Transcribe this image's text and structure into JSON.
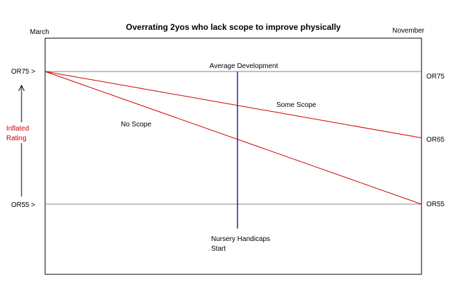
{
  "title": "Overrating 2yos who lack scope to improve physically",
  "start_label": "March",
  "end_label": "November",
  "left_axis": {
    "top_label": "OR75 >",
    "bottom_label": "OR55 >",
    "arrow_caption_line1": "Inflated",
    "arrow_caption_line2": "Rating"
  },
  "right_axis": {
    "top_label": "OR75",
    "middle_label": "OR65",
    "bottom_label": "OR55"
  },
  "milestone": {
    "top_label": "Average Development",
    "bottom_label_line1": "Nursery Handicaps",
    "bottom_label_line2": "Start"
  },
  "lines": [
    {
      "name": "Some Scope",
      "start": 75,
      "end": 65
    },
    {
      "name": "No Scope",
      "start": 75,
      "end": 55
    }
  ],
  "colors": {
    "frame": "#000000",
    "reference": "#808080",
    "lines": "#cc0000",
    "milestone": "#00008b",
    "caption": "#cc0000"
  }
}
